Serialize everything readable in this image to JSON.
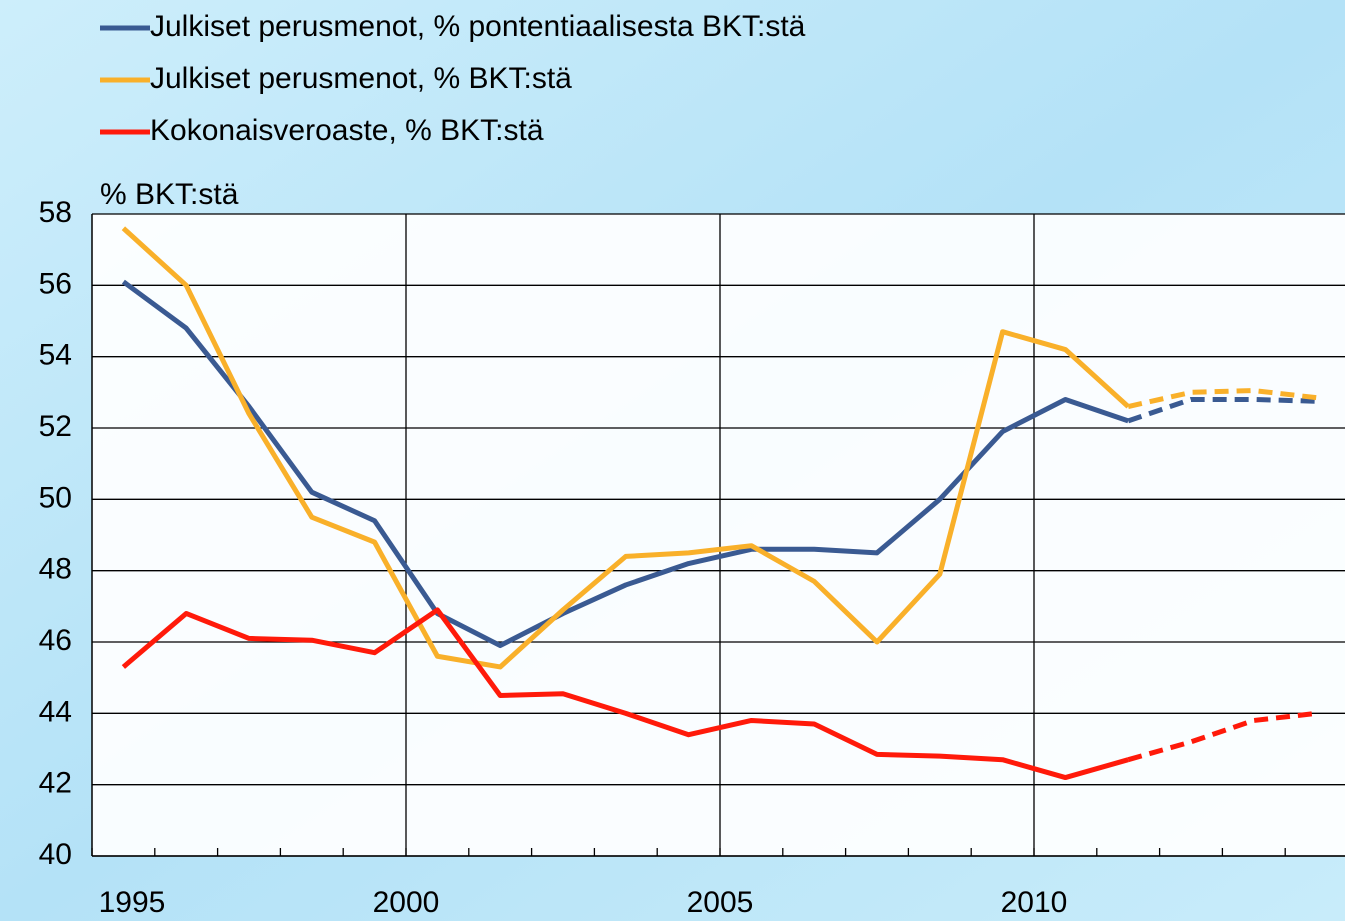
{
  "chart_data": {
    "type": "line",
    "y_label": "% BKT:stä",
    "x": [
      1995.5,
      1996.5,
      1997.5,
      1998.5,
      1999.5,
      2000.5,
      2001.5,
      2002.5,
      2003.5,
      2004.5,
      2005.5,
      2006.5,
      2007.5,
      2008.5,
      2009.5,
      2010.5,
      2011.5,
      2012.5,
      2013.5,
      2014.5
    ],
    "series": [
      {
        "name": "Julkiset perusmenot, % pontentiaalisesta BKT:stä",
        "color": "#3a5a92",
        "values": [
          56.1,
          54.8,
          52.6,
          50.2,
          49.4,
          46.8,
          45.9,
          46.8,
          47.6,
          48.2,
          48.6,
          48.6,
          48.5,
          50.0,
          51.9,
          52.8,
          52.2,
          52.8,
          52.8,
          52.75
        ]
      },
      {
        "name": "Julkiset perusmenot, % BKT:stä",
        "color": "#f9b02a",
        "values": [
          57.6,
          56.0,
          52.4,
          49.5,
          48.8,
          45.6,
          45.3,
          46.9,
          48.4,
          48.5,
          48.7,
          47.7,
          46.0,
          47.9,
          54.7,
          54.2,
          52.6,
          53.0,
          53.05,
          52.85
        ]
      },
      {
        "name": "Kokonaisveroaste, % BKT:stä",
        "color": "#ff1a0a",
        "values": [
          45.3,
          46.8,
          46.1,
          46.05,
          45.7,
          46.9,
          44.5,
          44.55,
          44.0,
          43.4,
          43.8,
          43.7,
          42.85,
          42.8,
          42.7,
          42.2,
          42.7,
          43.2,
          43.8,
          44.0
        ]
      }
    ],
    "dashed_from_x": 2011.5,
    "xlim": [
      1995,
      2015
    ],
    "xticks": [
      1995,
      2000,
      2005,
      2010
    ],
    "ylim": [
      40,
      58
    ],
    "yticks": [
      40,
      42,
      44,
      46,
      48,
      50,
      52,
      54,
      56,
      58
    ],
    "grid": true
  }
}
